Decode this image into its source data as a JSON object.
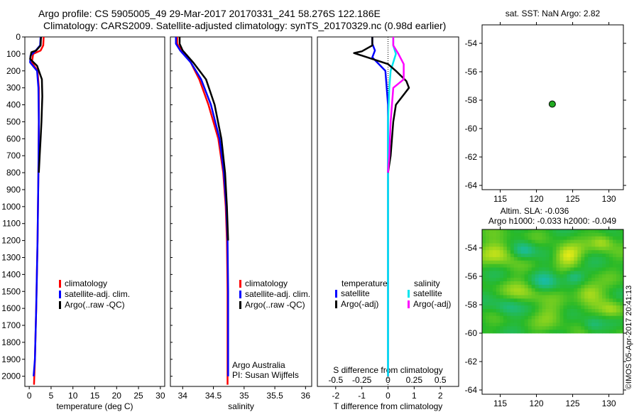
{
  "header": {
    "line1": "Argo profile: CS 5905005_49 29-Mar-2017 20170331_241 58.276S 122.186E",
    "line2": "Climatology: CARS2009. Satellite-adjusted climatology: synTS_20170329.nc (0.98d earlier)"
  },
  "footer": {
    "institute": "Argo Australia",
    "pi": "PI: Susan Wijffels",
    "stamp": "©IMOS 05-Apr-2017 20:41:13"
  },
  "colors": {
    "climatology": "#ff0000",
    "satellite": "#0000ff",
    "argo": "#000000",
    "sal_satellite": "#00e5ee",
    "sal_argo": "#ff00ff",
    "map_point": "#22aa22"
  },
  "chart_data": [
    {
      "id": "temperature",
      "type": "line",
      "xlabel": "temperature (deg C)",
      "ylabel": "",
      "xlim": [
        -1,
        31
      ],
      "ylim": [
        2060,
        0
      ],
      "xticks": [
        0,
        5,
        10,
        15,
        20,
        25,
        30
      ],
      "yticks": [
        0,
        100,
        200,
        300,
        400,
        500,
        600,
        700,
        800,
        900,
        1000,
        1100,
        1200,
        1300,
        1400,
        1500,
        1600,
        1700,
        1800,
        1900,
        2000
      ],
      "legend": [
        "climatology",
        "satellite-adj. clim.",
        "Argo(..raw -QC)"
      ],
      "series": [
        {
          "name": "climatology",
          "color": "#ff0000",
          "points": [
            [
              3.3,
              0
            ],
            [
              3.2,
              50
            ],
            [
              2.6,
              80
            ],
            [
              0.9,
              100
            ],
            [
              0.6,
              150
            ],
            [
              1.9,
              200
            ],
            [
              2.2,
              300
            ],
            [
              2.2,
              500
            ],
            [
              2.1,
              800
            ],
            [
              1.9,
              1200
            ],
            [
              1.6,
              1600
            ],
            [
              1.3,
              1900
            ],
            [
              1.1,
              2050
            ]
          ]
        },
        {
          "name": "satellite-adj. clim.",
          "color": "#0000ff",
          "points": [
            [
              2.6,
              0
            ],
            [
              2.5,
              50
            ],
            [
              1.5,
              80
            ],
            [
              0.3,
              110
            ],
            [
              0.2,
              150
            ],
            [
              1.8,
              200
            ],
            [
              2.1,
              300
            ],
            [
              2.2,
              500
            ],
            [
              2.1,
              800
            ],
            [
              1.9,
              1200
            ],
            [
              1.6,
              1600
            ],
            [
              1.3,
              1900
            ],
            [
              1.0,
              2000
            ]
          ]
        },
        {
          "name": "Argo(..raw -QC)",
          "color": "#000000",
          "points": [
            [
              2.7,
              0
            ],
            [
              2.6,
              50
            ],
            [
              1.6,
              80
            ],
            [
              0.5,
              90
            ],
            [
              0.2,
              130
            ],
            [
              1.8,
              170
            ],
            [
              2.9,
              250
            ],
            [
              3.0,
              350
            ],
            [
              2.8,
              500
            ],
            [
              2.6,
              600
            ],
            [
              2.4,
              700
            ],
            [
              2.2,
              800
            ]
          ]
        }
      ]
    },
    {
      "id": "salinity",
      "type": "line",
      "xlabel": "salinity",
      "ylabel": "",
      "xlim": [
        33.8,
        36.1
      ],
      "ylim": [
        2060,
        0
      ],
      "xticks": [
        34,
        34.5,
        35,
        35.5,
        36
      ],
      "yticks": [
        0,
        100,
        200,
        300,
        400,
        500,
        600,
        700,
        800,
        900,
        1000,
        1100,
        1200,
        1300,
        1400,
        1500,
        1600,
        1700,
        1800,
        1900,
        2000
      ],
      "legend": [
        "climatology",
        "satellite-adj. clim.",
        "Argo(..raw -QC)"
      ],
      "series": [
        {
          "name": "climatology",
          "color": "#ff0000",
          "points": [
            [
              33.91,
              0
            ],
            [
              33.91,
              40
            ],
            [
              33.98,
              80
            ],
            [
              34.13,
              150
            ],
            [
              34.27,
              250
            ],
            [
              34.42,
              400
            ],
            [
              34.58,
              600
            ],
            [
              34.66,
              800
            ],
            [
              34.7,
              1000
            ],
            [
              34.72,
              1200
            ],
            [
              34.73,
              1500
            ],
            [
              34.73,
              1800
            ],
            [
              34.73,
              2050
            ]
          ]
        },
        {
          "name": "satellite-adj. clim.",
          "color": "#0000ff",
          "points": [
            [
              33.89,
              0
            ],
            [
              33.89,
              40
            ],
            [
              33.96,
              80
            ],
            [
              34.13,
              150
            ],
            [
              34.3,
              250
            ],
            [
              34.46,
              400
            ],
            [
              34.6,
              600
            ],
            [
              34.67,
              800
            ],
            [
              34.71,
              1000
            ],
            [
              34.73,
              1200
            ],
            [
              34.74,
              1500
            ],
            [
              34.74,
              1800
            ],
            [
              34.74,
              2000
            ]
          ]
        },
        {
          "name": "Argo(..raw -QC)",
          "color": "#000000",
          "points": [
            [
              33.95,
              0
            ],
            [
              33.95,
              40
            ],
            [
              34.0,
              80
            ],
            [
              34.17,
              150
            ],
            [
              34.38,
              250
            ],
            [
              34.52,
              400
            ],
            [
              34.63,
              600
            ],
            [
              34.69,
              800
            ],
            [
              34.72,
              1000
            ],
            [
              34.74,
              1200
            ]
          ]
        }
      ]
    },
    {
      "id": "differences",
      "type": "line",
      "xlabel": "T difference from climatology",
      "xlabel_top": "S difference from climatology",
      "xlim": [
        -2.7,
        2.7
      ],
      "xticks": [
        -2,
        -1,
        0,
        1,
        2
      ],
      "s_xticks": [
        -0.5,
        -0.25,
        0,
        0.25,
        0.5
      ],
      "s_to_t_factor": 4,
      "ylim": [
        2060,
        0
      ],
      "legend": {
        "temperature_header": "temperature",
        "salinity_header": "salinity",
        "temperature": [
          "satellite",
          "Argo(-adj)"
        ],
        "salinity": [
          "satellite",
          "Argo(-adj)"
        ]
      },
      "series": [
        {
          "name": "T satellite",
          "color": "#0000ff",
          "points": [
            [
              -0.6,
              0
            ],
            [
              -0.6,
              40
            ],
            [
              -0.5,
              80
            ],
            [
              -0.6,
              120
            ],
            [
              -0.1,
              200
            ],
            [
              0,
              400
            ],
            [
              0,
              600
            ],
            [
              0,
              800
            ],
            [
              0,
              1200
            ],
            [
              0,
              1600
            ],
            [
              0,
              2000
            ]
          ]
        },
        {
          "name": "S satellite",
          "color": "#00e5ee",
          "points": [
            [
              0.2,
              0
            ],
            [
              0.2,
              50
            ],
            [
              0.3,
              100
            ],
            [
              0.2,
              150
            ],
            [
              0.1,
              200
            ],
            [
              0.05,
              300
            ],
            [
              0,
              500
            ],
            [
              0,
              1000
            ],
            [
              0,
              1500
            ],
            [
              0,
              2000
            ]
          ]
        },
        {
          "name": "T Argo(-adj)",
          "color": "#000000",
          "points": [
            [
              -0.6,
              0
            ],
            [
              -0.6,
              50
            ],
            [
              -1.0,
              85
            ],
            [
              -1.3,
              95
            ],
            [
              0.0,
              160
            ],
            [
              0.3,
              200
            ],
            [
              0.7,
              260
            ],
            [
              0.8,
              300
            ],
            [
              0.3,
              400
            ],
            [
              0.2,
              500
            ],
            [
              0.1,
              700
            ],
            [
              0,
              800
            ]
          ]
        },
        {
          "name": "S Argo(-adj)",
          "color": "#ff00ff",
          "points": [
            [
              0.2,
              0
            ],
            [
              0.2,
              50
            ],
            [
              0.4,
              100
            ],
            [
              0.6,
              160
            ],
            [
              0.6,
              250
            ],
            [
              0.2,
              300
            ],
            [
              0.1,
              500
            ],
            [
              0.05,
              700
            ],
            [
              0,
              800
            ]
          ]
        }
      ]
    },
    {
      "id": "map_sst",
      "type": "scatter",
      "title": "sat. SST: NaN Argo: 2.82",
      "xlim": [
        112.5,
        132
      ],
      "ylim": [
        -64.3,
        -52.7
      ],
      "xticks": [
        115,
        120,
        125,
        130
      ],
      "yticks": [
        -54,
        -56,
        -58,
        -60,
        -62,
        -64
      ],
      "points": [
        {
          "x": 122.186,
          "y": -58.276
        }
      ]
    },
    {
      "id": "map_sla",
      "type": "heatmap",
      "title": "Altim. SLA: -0.036",
      "subtitle": "Argo h1000: -0.033 h2000: -0.049",
      "xlim": [
        112.5,
        132
      ],
      "ylim": [
        -64.3,
        -52.7
      ],
      "xticks": [
        115,
        120,
        125,
        130
      ],
      "yticks": [
        -54,
        -56,
        -58,
        -60,
        -62,
        -64
      ],
      "data_extent": {
        "lat": [
          -60,
          -52.7
        ],
        "lon": [
          112.5,
          132
        ]
      }
    }
  ]
}
